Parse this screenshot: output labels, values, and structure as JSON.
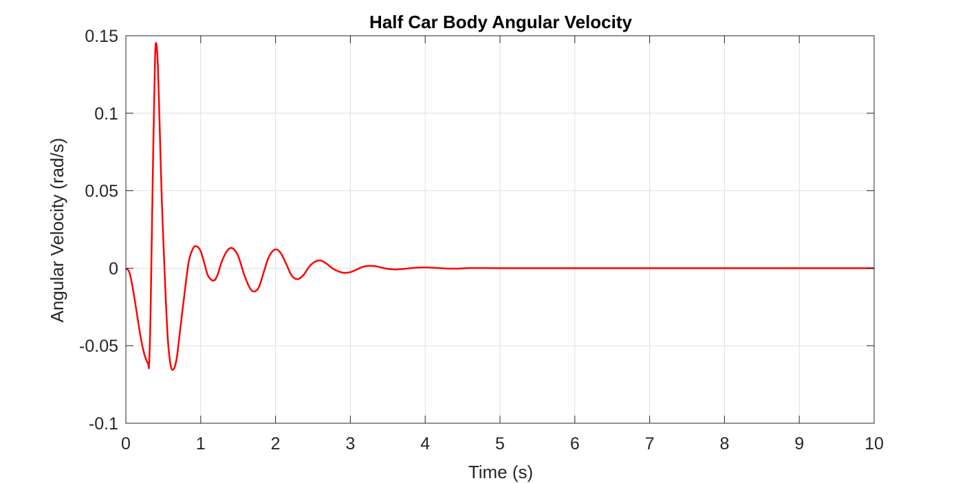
{
  "chart_data": {
    "type": "line",
    "title": "Half Car Body Angular Velocity",
    "xlabel": "Time (s)",
    "ylabel": "Angular Velocity (rad/s)",
    "xlim": [
      0,
      10
    ],
    "ylim": [
      -0.1,
      0.15
    ],
    "xticks": [
      0,
      1,
      2,
      3,
      4,
      5,
      6,
      7,
      8,
      9,
      10
    ],
    "xtick_labels": [
      "0",
      "1",
      "2",
      "3",
      "4",
      "5",
      "6",
      "7",
      "8",
      "9",
      "10"
    ],
    "yticks": [
      -0.1,
      -0.05,
      0,
      0.05,
      0.1,
      0.15
    ],
    "ytick_labels": [
      "-0.1",
      "-0.05",
      "0",
      "0.05",
      "0.1",
      "0.15"
    ],
    "grid": true,
    "series": [
      {
        "color": "#ff0000",
        "x": [
          0,
          0.05,
          0.1,
          0.15,
          0.2,
          0.25,
          0.3,
          0.31,
          0.33,
          0.36,
          0.39,
          0.41,
          0.43,
          0.45,
          0.48,
          0.52,
          0.56,
          0.6,
          0.64,
          0.68,
          0.72,
          0.78,
          0.84,
          0.9,
          0.95,
          1.0,
          1.05,
          1.1,
          1.17,
          1.22,
          1.28,
          1.35,
          1.42,
          1.5,
          1.58,
          1.66,
          1.72,
          1.78,
          1.84,
          1.9,
          1.96,
          2.02,
          2.08,
          2.15,
          2.22,
          2.3,
          2.38,
          2.45,
          2.52,
          2.6,
          2.68,
          2.76,
          2.84,
          2.92,
          3.0,
          3.08,
          3.16,
          3.25,
          3.35,
          3.45,
          3.52,
          3.6,
          3.7,
          3.8,
          3.9,
          4.0,
          4.15,
          4.3,
          4.45,
          4.6,
          4.8,
          5.0,
          5.2,
          5.4,
          5.6,
          5.8,
          6.0,
          6.5,
          7.0,
          8.0,
          9.0,
          10.0
        ],
        "y": [
          0,
          -0.003,
          -0.015,
          -0.03,
          -0.045,
          -0.056,
          -0.062,
          -0.062,
          -0.03,
          0.06,
          0.135,
          0.144,
          0.128,
          0.095,
          0.045,
          -0.005,
          -0.045,
          -0.063,
          -0.065,
          -0.058,
          -0.042,
          -0.018,
          0.004,
          0.013,
          0.014,
          0.011,
          0.003,
          -0.005,
          -0.008,
          -0.005,
          0.004,
          0.011,
          0.013,
          0.008,
          -0.004,
          -0.013,
          -0.015,
          -0.012,
          -0.003,
          0.006,
          0.011,
          0.012,
          0.009,
          0.002,
          -0.005,
          -0.007,
          -0.004,
          0.001,
          0.004,
          0.005,
          0.003,
          0.0,
          -0.002,
          -0.003,
          -0.0025,
          -0.001,
          0.0008,
          0.0015,
          0.0012,
          0.0,
          -0.0005,
          -0.0008,
          -0.0005,
          0.0,
          0.0004,
          0.0005,
          0.0002,
          -0.0002,
          -0.0002,
          0.0001,
          0.0001,
          0,
          0,
          0,
          0,
          0,
          0,
          0,
          0,
          0,
          0,
          0
        ]
      }
    ]
  }
}
